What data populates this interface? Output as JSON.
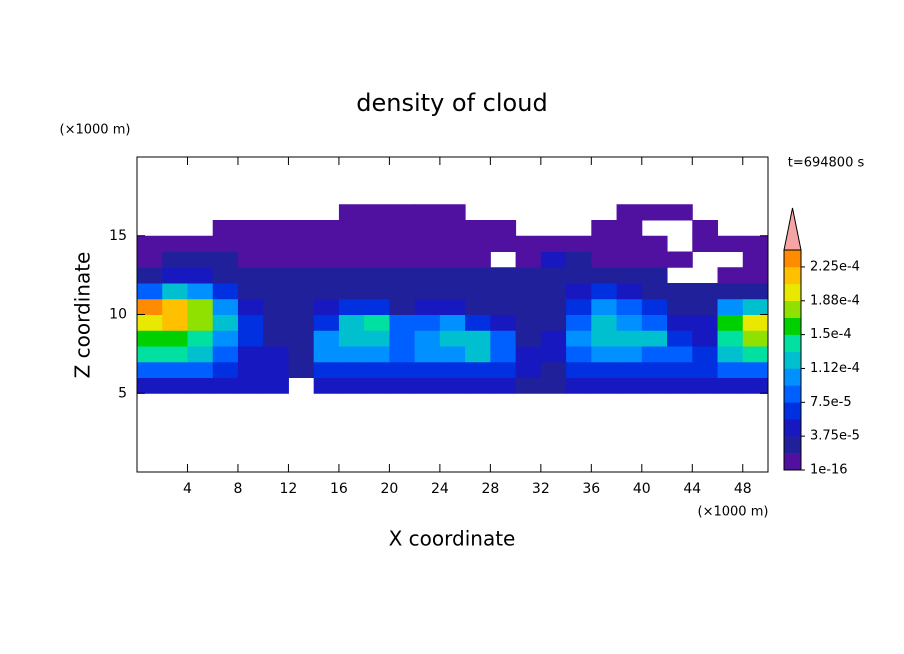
{
  "chart_data": {
    "type": "contour",
    "title": "density of cloud",
    "x_label": "X coordinate",
    "y_label": "Z coordinate",
    "x_unit_label": "(×1000 m)",
    "y_unit_label": "(×1000 m)",
    "annotation": "t=694800 s",
    "xlim": [
      0,
      50
    ],
    "ylim": [
      0,
      20
    ],
    "xticks": [
      4,
      8,
      12,
      16,
      20,
      24,
      28,
      32,
      36,
      40,
      44,
      48
    ],
    "yticks": [
      5,
      10,
      15
    ],
    "x": [
      1,
      3,
      5,
      7,
      9,
      11,
      13,
      15,
      17,
      19,
      21,
      23,
      25,
      27,
      29,
      31,
      33,
      35,
      37,
      39,
      41,
      43,
      45,
      47,
      49
    ],
    "z": [
      5.5,
      6.5,
      7.5,
      8.5,
      9.5,
      10.5,
      11.5,
      12.5,
      13.5,
      14.5,
      15.5,
      16.5
    ],
    "values": [
      [
        5e-05,
        5e-05,
        5e-05,
        5e-05,
        5e-05,
        4e-05,
        null,
        5e-05,
        5e-05,
        5e-05,
        5e-05,
        5e-05,
        5e-05,
        5e-05,
        4e-05,
        3e-05,
        3e-05,
        4e-05,
        5e-05,
        5e-05,
        5e-05,
        5e-05,
        5e-05,
        5e-05,
        5e-05
      ],
      [
        9e-05,
        9e-05,
        8e-05,
        7e-05,
        5e-05,
        4e-05,
        3e-05,
        6e-05,
        7e-05,
        7e-05,
        7e-05,
        6e-05,
        6e-05,
        7e-05,
        6e-05,
        4e-05,
        3e-05,
        6e-05,
        7e-05,
        7e-05,
        6e-05,
        6e-05,
        7e-05,
        8e-05,
        8e-05
      ],
      [
        0.00014,
        0.00014,
        0.00012,
        9e-05,
        5e-05,
        4e-05,
        3e-05,
        0.0001,
        0.00011,
        0.0001,
        8e-05,
        0.0001,
        0.00011,
        0.00012,
        9e-05,
        4e-05,
        5e-05,
        9e-05,
        0.00011,
        0.0001,
        9e-05,
        8e-05,
        6e-05,
        0.00012,
        0.00014
      ],
      [
        0.00016,
        0.00016,
        0.00014,
        0.00011,
        7e-05,
        3e-05,
        3e-05,
        0.0001,
        0.00012,
        0.00012,
        9e-05,
        0.00011,
        0.00013,
        0.00012,
        8e-05,
        3e-05,
        4e-05,
        0.0001,
        0.00013,
        0.00013,
        0.00012,
        7e-05,
        5e-05,
        0.00014,
        0.00017
      ],
      [
        0.00019,
        0.00021,
        0.00017,
        0.00012,
        6e-05,
        3e-05,
        3e-05,
        7e-05,
        0.00012,
        0.00014,
        8e-05,
        9e-05,
        0.00011,
        7e-05,
        4e-05,
        2e-05,
        3e-05,
        9e-05,
        0.00013,
        0.00011,
        8e-05,
        4e-05,
        5e-05,
        0.00016,
        0.00019
      ],
      [
        0.00023,
        0.00022,
        0.00018,
        0.00011,
        5e-05,
        3e-05,
        2e-05,
        4e-05,
        6e-05,
        7e-05,
        3e-05,
        4e-05,
        5e-05,
        3e-05,
        2e-05,
        2e-05,
        2e-05,
        7e-05,
        0.0001,
        8e-05,
        6e-05,
        3e-05,
        3e-05,
        0.0001,
        0.00013
      ],
      [
        9e-05,
        0.00012,
        0.0001,
        7e-05,
        3e-05,
        2e-05,
        2e-05,
        3e-05,
        3e-05,
        3e-05,
        2e-05,
        2e-05,
        2e-05,
        2e-05,
        2e-05,
        2e-05,
        2e-05,
        5e-05,
        6e-05,
        5e-05,
        3e-05,
        2e-05,
        2e-05,
        2e-05,
        2e-05
      ],
      [
        3e-05,
        5e-05,
        5e-05,
        3e-05,
        2e-05,
        2e-05,
        2e-05,
        2e-05,
        2e-05,
        2e-05,
        2e-05,
        2e-05,
        2e-05,
        2e-05,
        2e-05,
        2e-05,
        2e-05,
        3e-05,
        2e-05,
        2e-05,
        2e-05,
        null,
        null,
        1e-05,
        1e-05
      ],
      [
        1e-05,
        2e-05,
        2e-05,
        2e-05,
        1e-05,
        1e-05,
        1e-05,
        1e-05,
        1e-05,
        1e-05,
        1e-05,
        1e-05,
        1e-05,
        1e-05,
        null,
        1e-05,
        4e-05,
        3e-05,
        1e-05,
        1e-05,
        1e-05,
        1e-05,
        null,
        null,
        1e-05
      ],
      [
        1e-05,
        1e-05,
        1e-05,
        1e-05,
        1e-05,
        1e-05,
        1e-05,
        1e-05,
        1e-05,
        1e-05,
        1e-05,
        1e-05,
        1e-05,
        1e-05,
        1e-05,
        1e-05,
        1e-05,
        1e-05,
        1e-05,
        1e-05,
        1e-05,
        null,
        1e-05,
        1e-05,
        1e-05
      ],
      [
        null,
        null,
        null,
        1e-05,
        1e-05,
        1e-05,
        1e-05,
        1e-05,
        1e-05,
        1e-05,
        1e-05,
        1e-05,
        1e-05,
        1e-05,
        1e-05,
        null,
        null,
        null,
        1e-05,
        1e-05,
        null,
        null,
        1e-05,
        null,
        null
      ],
      [
        null,
        null,
        null,
        null,
        null,
        null,
        null,
        null,
        1e-05,
        1e-05,
        1e-05,
        1e-05,
        1e-05,
        null,
        null,
        null,
        null,
        null,
        null,
        1e-05,
        1e-05,
        1e-05,
        null,
        null,
        null
      ]
    ],
    "colorbar": {
      "clim": [
        1e-16,
        0.00024375
      ],
      "colors": [
        "#5010a0",
        "#20209a",
        "#1818c0",
        "#0030e0",
        "#0060ff",
        "#0090ff",
        "#00c0d0",
        "#00e0a0",
        "#00d000",
        "#90e000",
        "#e8e800",
        "#ffc000",
        "#ff8c00"
      ],
      "extend_color": "#f4a4a4",
      "ticks": [
        1e-16,
        {
          "value": 3.75e-05,
          "label": "3.75e-5"
        },
        {
          "value": 7.5e-05,
          "label": "7.5e-5"
        },
        {
          "value": 0.0001125,
          "label": "1.12e-4"
        },
        {
          "value": 0.00015,
          "label": "1.5e-4"
        },
        {
          "value": 0.0001875,
          "label": "1.88e-4"
        },
        {
          "value": 0.000225,
          "label": "2.25e-4"
        }
      ]
    }
  }
}
